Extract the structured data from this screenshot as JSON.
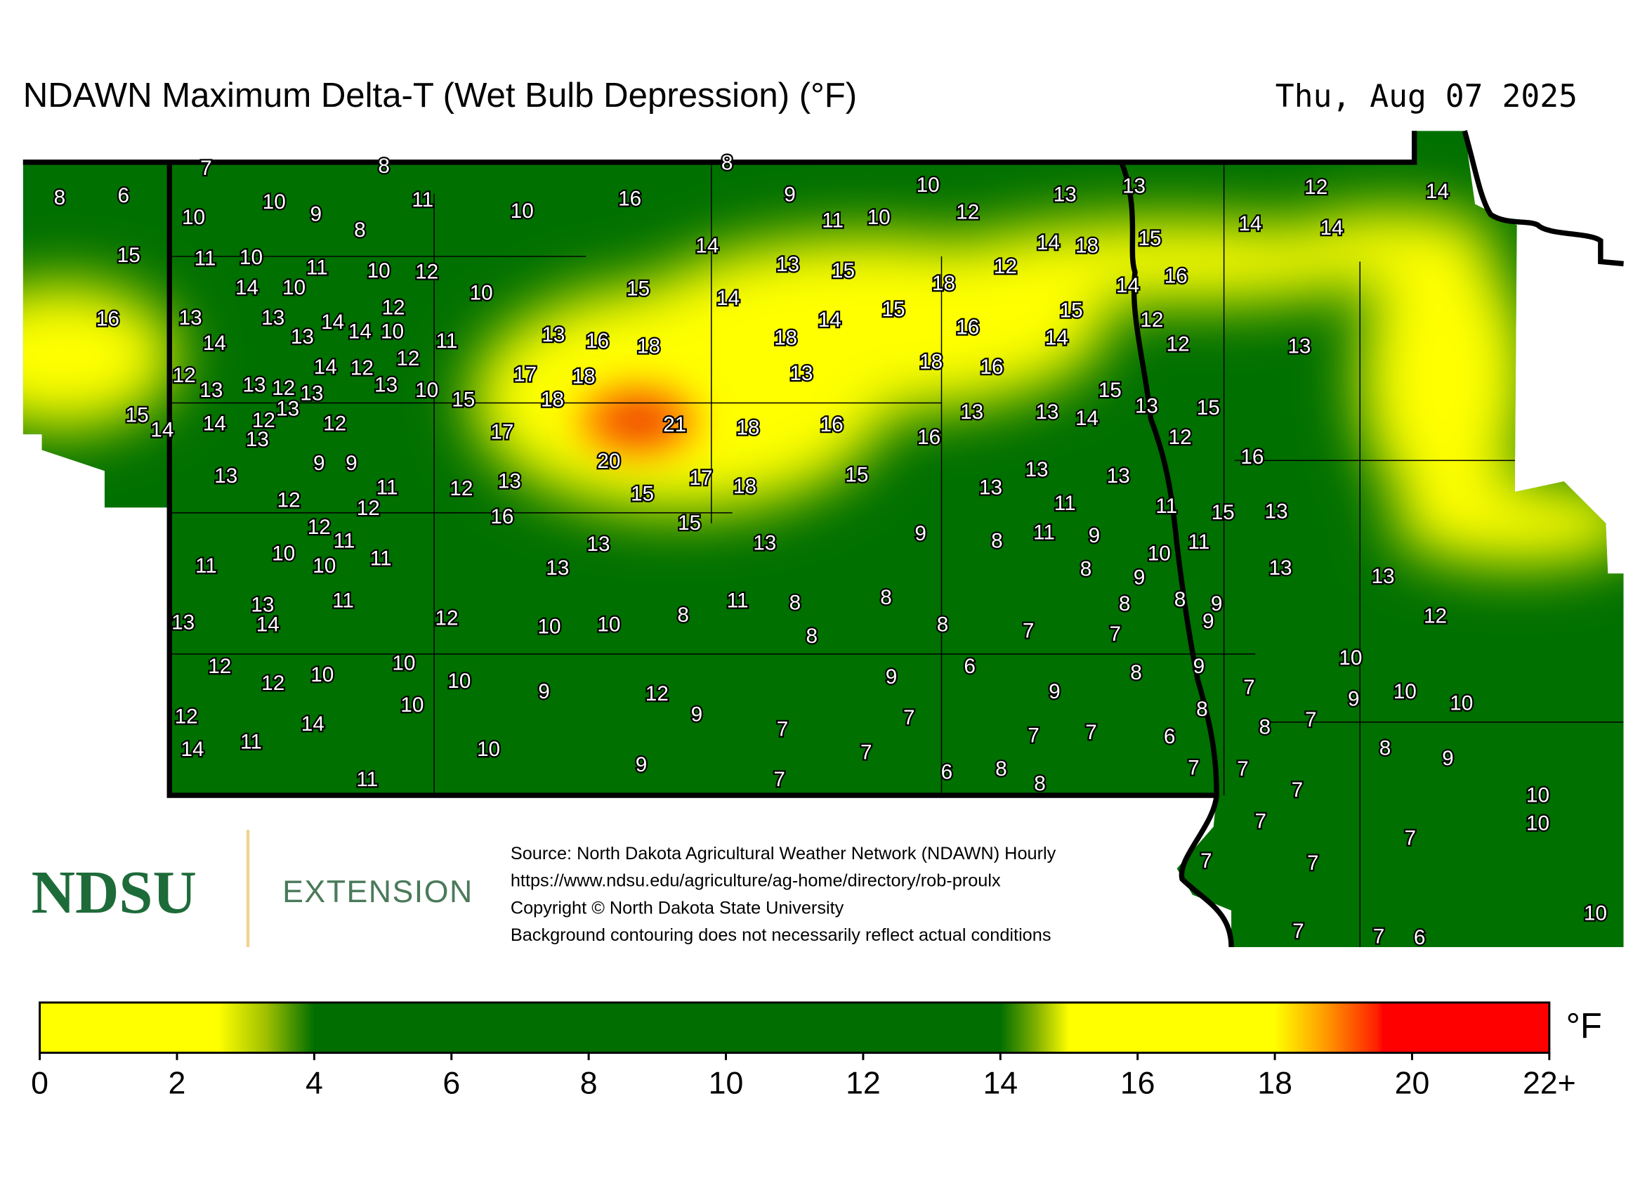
{
  "title": "NDAWN Maximum Delta-T (Wet Bulb Depression) (°F)",
  "date": "Thu, Aug 07 2025",
  "stations": {
    "values": [
      7,
      8,
      8,
      8,
      6,
      10,
      10,
      9,
      8,
      11,
      10,
      16,
      9,
      11,
      10,
      10,
      12,
      13,
      13,
      12,
      14,
      15,
      11,
      10,
      11,
      10,
      12,
      10,
      14,
      13,
      15,
      14,
      18,
      15,
      14,
      14,
      12,
      14,
      16,
      16,
      13,
      14,
      10,
      13,
      14,
      13,
      14,
      12,
      10,
      11,
      13,
      16,
      18,
      15,
      14,
      18,
      14,
      15,
      18,
      16,
      15,
      14,
      12,
      12,
      13,
      14,
      12,
      13,
      13,
      12,
      13,
      14,
      12,
      12,
      13,
      10,
      15,
      17,
      18,
      18,
      13,
      18,
      16,
      15,
      13,
      15,
      15,
      14,
      14,
      12,
      13,
      13,
      12,
      17,
      21,
      18,
      16,
      13,
      13,
      14,
      12,
      16,
      16,
      9,
      9,
      13,
      11,
      12,
      13,
      20,
      17,
      18,
      15,
      13,
      13,
      13,
      12,
      12,
      15,
      16,
      11,
      11,
      15,
      13,
      12,
      11,
      10,
      10,
      11,
      11,
      13,
      13,
      15,
      13,
      9,
      8,
      11,
      9,
      10,
      11,
      13,
      13,
      8,
      9,
      13,
      14,
      11,
      13,
      12,
      10,
      10,
      8,
      11,
      8,
      8,
      8,
      8,
      7,
      7,
      8,
      8,
      9,
      9,
      12,
      12,
      12,
      10,
      10,
      10,
      10,
      9,
      12,
      9,
      6,
      9,
      8,
      9,
      7,
      10,
      9,
      10,
      10,
      12,
      14,
      11,
      14,
      11,
      10,
      9,
      7,
      7,
      7,
      6,
      8,
      8,
      7,
      7,
      6,
      8,
      8,
      7,
      8,
      9,
      9,
      7,
      7,
      7,
      7,
      7,
      7,
      10,
      10,
      7,
      7,
      10,
      7,
      7,
      6
    ]
  },
  "legend": {
    "unit": "°F",
    "ticks": [
      0,
      2,
      4,
      6,
      8,
      10,
      12,
      14,
      16,
      18,
      20,
      {
        "value": 22,
        "label": "22+"
      }
    ]
  },
  "source": [
    "Source: North Dakota Agricultural Weather Network (NDAWN) Hourly",
    "https://www.ndsu.edu/agriculture/ag-home/directory/rob-proulx",
    "Copyright © North Dakota State University",
    "Background contouring does not necessarily reflect actual conditions"
  ],
  "logo": {
    "name": "NDSU",
    "unit": "EXTENSION"
  }
}
